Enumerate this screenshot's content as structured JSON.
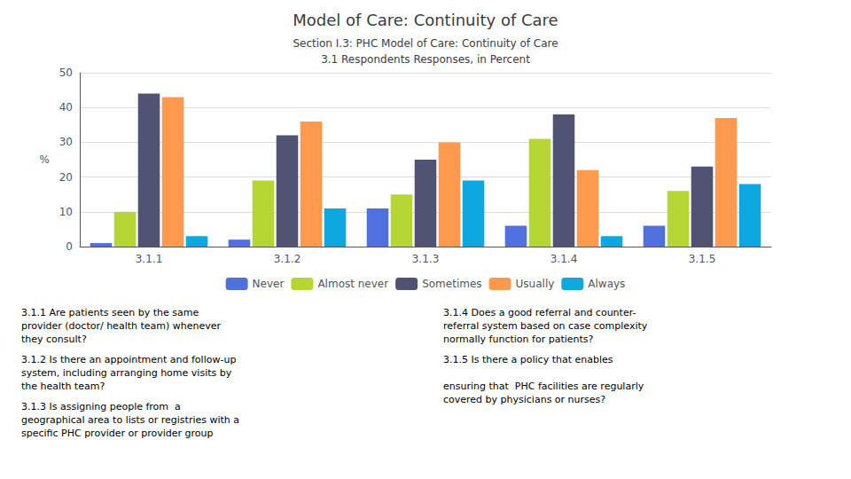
{
  "chart_data": {
    "type": "bar",
    "title": "Model of Care: Continuity of Care",
    "subtitle": [
      "Section I.3: PHC Model of Care: Continuity of Care",
      "3.1 Respondents Responses, in Percent"
    ],
    "ylabel": "%",
    "categories": [
      "3.1.1",
      "3.1.2",
      "3.1.3",
      "3.1.4",
      "3.1.5"
    ],
    "series": [
      {
        "name": "Never",
        "values": [
          1,
          2,
          11,
          6,
          6
        ]
      },
      {
        "name": "Almost never",
        "values": [
          10,
          19,
          15,
          31,
          16
        ]
      },
      {
        "name": "Sometimes",
        "values": [
          44,
          32,
          25,
          38,
          23
        ]
      },
      {
        "name": "Usually",
        "values": [
          43,
          36,
          30,
          22,
          37
        ]
      },
      {
        "name": "Always",
        "values": [
          3,
          11,
          19,
          3,
          18
        ]
      }
    ],
    "ylim": [
      0,
      50
    ],
    "yticks": [
      0,
      10,
      20,
      30,
      40,
      50
    ],
    "grid": true,
    "legend": "bottom",
    "annotations": [
      "3.1.1 Are patients seen by the same\nprovider (doctor/ health team) whenever\nthey consult?",
      "3.1.2 Is there an appointment and follow-up\nsystem, including arranging home visits by\nthe health team?",
      "3.1.3 Is assigning people from  a\ngeographical area to lists or registries with a\nspecific PHC provider or provider group",
      "3.1.4 Does a good referral and counter-\nreferral system based on case complexity\nnormally function for patients?",
      "3.1.5 Is there a policy that enables\n\nensuring that  PHC facilities are regularly\ncovered by physicians or nurses?"
    ]
  }
}
